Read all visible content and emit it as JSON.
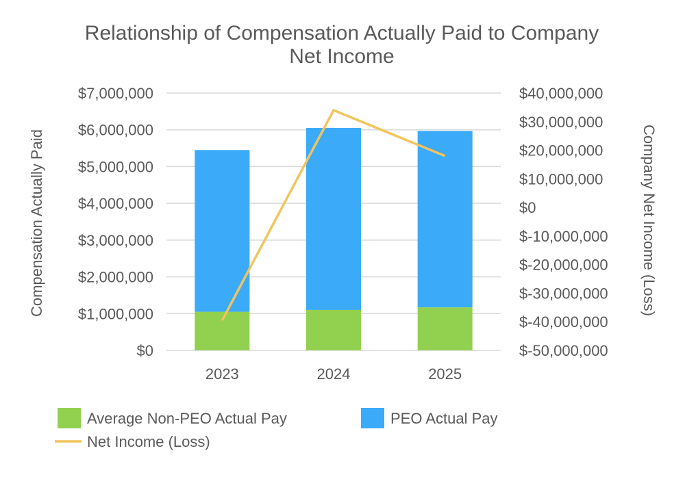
{
  "chart_data": {
    "type": "bar",
    "title_lines": [
      "Relationship of Compensation Actually Paid to Company",
      "Net Income"
    ],
    "categories": [
      "2023",
      "2024",
      "2025"
    ],
    "series": [
      {
        "name": "Average Non-PEO Actual Pay",
        "kind": "stacked-bar",
        "axis": "left",
        "color": "#92d050",
        "values": [
          1050000,
          1100000,
          1170000
        ]
      },
      {
        "name": "PEO Actual Pay",
        "kind": "stacked-bar",
        "axis": "left",
        "color": "#3aaaf9",
        "values": [
          4400000,
          4950000,
          4800000
        ]
      },
      {
        "name": "Net Income (Loss)",
        "kind": "line",
        "axis": "right",
        "color": "#f2c45c",
        "values": [
          -39500000,
          34000000,
          18000000
        ]
      }
    ],
    "y_left": {
      "label": "Compensation Actually Paid",
      "range": [
        0,
        7000000
      ],
      "ticks": [
        0,
        1000000,
        2000000,
        3000000,
        4000000,
        5000000,
        6000000,
        7000000
      ],
      "tick_labels": [
        "$0",
        "$1,000,000",
        "$2,000,000",
        "$3,000,000",
        "$4,000,000",
        "$5,000,000",
        "$6,000,000",
        "$7,000,000"
      ]
    },
    "y_right": {
      "label": "Company Net Income (Loss)",
      "range": [
        -50000000,
        40000000
      ],
      "ticks": [
        -50000000,
        -40000000,
        -30000000,
        -20000000,
        -10000000,
        0,
        10000000,
        20000000,
        30000000,
        40000000
      ],
      "tick_labels": [
        "$-50,000,000",
        "$-40,000,000",
        "$-30,000,000",
        "$-20,000,000",
        "$-10,000,000",
        "$0",
        "$10,000,000",
        "$20,000,000",
        "$30,000,000",
        "$40,000,000"
      ]
    },
    "grid": true,
    "legend_position": "bottom"
  },
  "colors": {
    "text": "#595959",
    "grid": "#d9d9d9"
  }
}
